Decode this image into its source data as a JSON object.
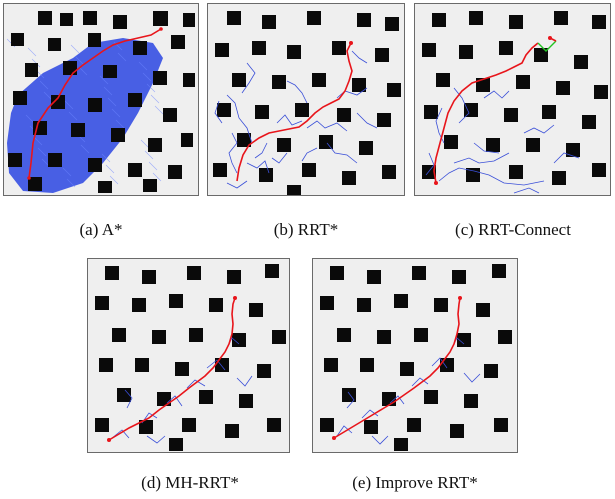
{
  "panels": [
    {
      "id": "a",
      "caption": "(a) A*"
    },
    {
      "id": "b",
      "caption": "(b) RRT*"
    },
    {
      "id": "c",
      "caption": "(c) RRT-Connect"
    },
    {
      "id": "d",
      "caption": "(d) MH-RRT*"
    },
    {
      "id": "e",
      "caption": "(e) Improve RRT*"
    }
  ],
  "colors": {
    "background": "#efefef",
    "obstacle": "#0a0a0a",
    "path": "#e8151b",
    "tree": "#3a4fd8",
    "astar_fill": "#1f3fe0",
    "connect_segment": "#22c422"
  }
}
